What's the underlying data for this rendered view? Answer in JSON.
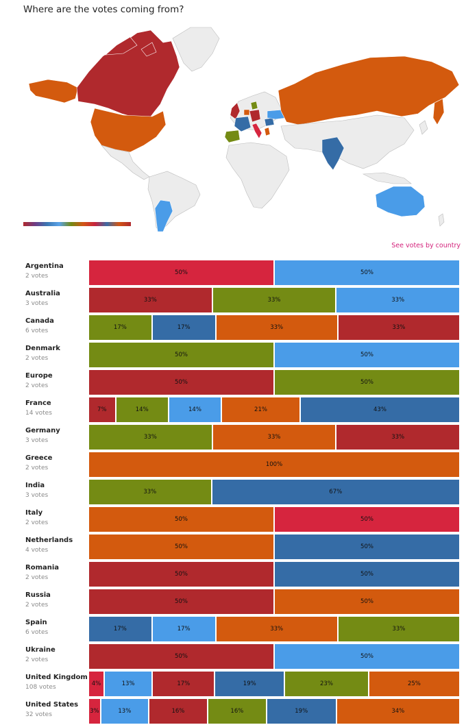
{
  "header": {
    "title": "Where are the votes coming from?"
  },
  "link": {
    "see_votes": "See votes by country"
  },
  "map": {
    "gradient_icon": "color-gradient-legend"
  },
  "colors": {
    "crimson": "#d6253e",
    "brick": "#b0292d",
    "olive": "#748b14",
    "orange": "#d35a0e",
    "steel": "#356ca6",
    "sky": "#4a9ce8"
  },
  "chart_data": {
    "type": "bar",
    "stacked": true,
    "orientation": "horizontal",
    "categories": [
      "Argentina",
      "Australia",
      "Canada",
      "Denmark",
      "Europe",
      "France",
      "Germany",
      "Greece",
      "India",
      "Italy",
      "Netherlands",
      "Romania",
      "Russia",
      "Spain",
      "Ukraine",
      "United Kingdom",
      "United States"
    ],
    "rows": [
      {
        "name": "Argentina",
        "votes": "2 votes",
        "segments": [
          {
            "value": 50,
            "label": "50%",
            "color": "crimson"
          },
          {
            "value": 50,
            "label": "50%",
            "color": "sky"
          }
        ]
      },
      {
        "name": "Australia",
        "votes": "3 votes",
        "segments": [
          {
            "value": 33,
            "label": "33%",
            "color": "brick"
          },
          {
            "value": 33,
            "label": "33%",
            "color": "olive"
          },
          {
            "value": 33,
            "label": "33%",
            "color": "sky"
          }
        ]
      },
      {
        "name": "Canada",
        "votes": "6 votes",
        "segments": [
          {
            "value": 17,
            "label": "17%",
            "color": "olive"
          },
          {
            "value": 17,
            "label": "17%",
            "color": "steel"
          },
          {
            "value": 33,
            "label": "33%",
            "color": "orange"
          },
          {
            "value": 33,
            "label": "33%",
            "color": "brick"
          }
        ]
      },
      {
        "name": "Denmark",
        "votes": "2 votes",
        "segments": [
          {
            "value": 50,
            "label": "50%",
            "color": "olive"
          },
          {
            "value": 50,
            "label": "50%",
            "color": "sky"
          }
        ]
      },
      {
        "name": "Europe",
        "votes": "2 votes",
        "segments": [
          {
            "value": 50,
            "label": "50%",
            "color": "brick"
          },
          {
            "value": 50,
            "label": "50%",
            "color": "olive"
          }
        ]
      },
      {
        "name": "France",
        "votes": "14 votes",
        "segments": [
          {
            "value": 7,
            "label": "7%",
            "color": "brick"
          },
          {
            "value": 14,
            "label": "14%",
            "color": "olive"
          },
          {
            "value": 14,
            "label": "14%",
            "color": "sky"
          },
          {
            "value": 21,
            "label": "21%",
            "color": "orange"
          },
          {
            "value": 43,
            "label": "43%",
            "color": "steel"
          }
        ]
      },
      {
        "name": "Germany",
        "votes": "3 votes",
        "segments": [
          {
            "value": 33,
            "label": "33%",
            "color": "olive"
          },
          {
            "value": 33,
            "label": "33%",
            "color": "orange"
          },
          {
            "value": 33,
            "label": "33%",
            "color": "brick"
          }
        ]
      },
      {
        "name": "Greece",
        "votes": "2 votes",
        "segments": [
          {
            "value": 100,
            "label": "100%",
            "color": "orange"
          }
        ]
      },
      {
        "name": "India",
        "votes": "3 votes",
        "segments": [
          {
            "value": 33,
            "label": "33%",
            "color": "olive"
          },
          {
            "value": 67,
            "label": "67%",
            "color": "steel"
          }
        ]
      },
      {
        "name": "Italy",
        "votes": "2 votes",
        "segments": [
          {
            "value": 50,
            "label": "50%",
            "color": "orange"
          },
          {
            "value": 50,
            "label": "50%",
            "color": "crimson"
          }
        ]
      },
      {
        "name": "Netherlands",
        "votes": "4 votes",
        "segments": [
          {
            "value": 50,
            "label": "50%",
            "color": "orange"
          },
          {
            "value": 50,
            "label": "50%",
            "color": "steel"
          }
        ]
      },
      {
        "name": "Romania",
        "votes": "2 votes",
        "segments": [
          {
            "value": 50,
            "label": "50%",
            "color": "brick"
          },
          {
            "value": 50,
            "label": "50%",
            "color": "steel"
          }
        ]
      },
      {
        "name": "Russia",
        "votes": "2 votes",
        "segments": [
          {
            "value": 50,
            "label": "50%",
            "color": "brick"
          },
          {
            "value": 50,
            "label": "50%",
            "color": "orange"
          }
        ]
      },
      {
        "name": "Spain",
        "votes": "6 votes",
        "segments": [
          {
            "value": 17,
            "label": "17%",
            "color": "steel"
          },
          {
            "value": 17,
            "label": "17%",
            "color": "sky"
          },
          {
            "value": 33,
            "label": "33%",
            "color": "orange"
          },
          {
            "value": 33,
            "label": "33%",
            "color": "olive"
          }
        ]
      },
      {
        "name": "Ukraine",
        "votes": "2 votes",
        "segments": [
          {
            "value": 50,
            "label": "50%",
            "color": "brick"
          },
          {
            "value": 50,
            "label": "50%",
            "color": "sky"
          }
        ]
      },
      {
        "name": "United Kingdom",
        "votes": "108 votes",
        "segments": [
          {
            "value": 4,
            "label": "4%",
            "color": "crimson"
          },
          {
            "value": 13,
            "label": "13%",
            "color": "sky"
          },
          {
            "value": 17,
            "label": "17%",
            "color": "brick"
          },
          {
            "value": 19,
            "label": "19%",
            "color": "steel"
          },
          {
            "value": 23,
            "label": "23%",
            "color": "olive"
          },
          {
            "value": 25,
            "label": "25%",
            "color": "orange"
          }
        ]
      },
      {
        "name": "United States",
        "votes": "32 votes",
        "segments": [
          {
            "value": 3,
            "label": "3%",
            "color": "crimson"
          },
          {
            "value": 13,
            "label": "13%",
            "color": "sky"
          },
          {
            "value": 16,
            "label": "16%",
            "color": "brick"
          },
          {
            "value": 16,
            "label": "16%",
            "color": "olive"
          },
          {
            "value": 19,
            "label": "19%",
            "color": "steel"
          },
          {
            "value": 34,
            "label": "34%",
            "color": "orange"
          }
        ]
      }
    ]
  }
}
